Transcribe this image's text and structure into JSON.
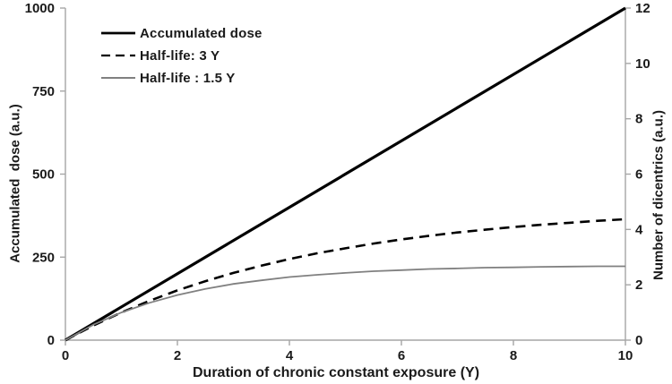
{
  "chart_data": {
    "type": "line",
    "title": "",
    "xlabel": "Duration of chronic constant exposure (Y)",
    "ylabel_left": "Accumulated  dose (a.u.)",
    "ylabel_right": "Number of dicentrics (a.u.)",
    "xlim": [
      0,
      10
    ],
    "ylim_left": [
      0,
      1000
    ],
    "ylim_right": [
      0,
      12
    ],
    "x_ticks": [
      0,
      2,
      4,
      6,
      8,
      10
    ],
    "y_ticks_left": [
      0,
      250,
      500,
      750,
      1000
    ],
    "y_ticks_right": [
      0,
      2,
      4,
      6,
      8,
      10,
      12
    ],
    "grid": false,
    "legend_position": "top-left-inside",
    "colors": {
      "black_series": "#000000",
      "gray_series": "#808080",
      "axis": "#a6a6a6",
      "text": "#1a1a1a",
      "background": "#ffffff"
    },
    "series": [
      {
        "name": "Accumulated dose",
        "axis": "left",
        "style": "solid",
        "color": "#000000",
        "width": 3.2,
        "x": [
          0,
          10
        ],
        "y": [
          0,
          1000
        ]
      },
      {
        "name": "Half-life: 3 Y",
        "axis": "right",
        "style": "dashed",
        "color": "#000000",
        "width": 2.6,
        "x": [
          0,
          0.5,
          1,
          1.5,
          2,
          2.5,
          3,
          3.5,
          4,
          4.5,
          5,
          5.5,
          6,
          6.5,
          7,
          7.5,
          8,
          8.5,
          9,
          9.5,
          10
        ],
        "y": [
          0,
          0.53,
          1.0,
          1.42,
          1.8,
          2.13,
          2.43,
          2.69,
          2.93,
          3.14,
          3.32,
          3.49,
          3.64,
          3.77,
          3.89,
          3.99,
          4.09,
          4.17,
          4.24,
          4.31,
          4.37
        ]
      },
      {
        "name": "Half-life : 1.5 Y",
        "axis": "right",
        "style": "solid",
        "color": "#808080",
        "width": 1.8,
        "x": [
          0,
          0.5,
          1,
          1.5,
          2,
          2.5,
          3,
          3.5,
          4,
          4.5,
          5,
          5.5,
          6,
          6.5,
          7,
          7.5,
          8,
          8.5,
          9,
          9.5,
          10
        ],
        "y": [
          0,
          0.56,
          1.0,
          1.35,
          1.63,
          1.85,
          2.03,
          2.16,
          2.28,
          2.36,
          2.43,
          2.49,
          2.53,
          2.57,
          2.59,
          2.62,
          2.63,
          2.65,
          2.66,
          2.67,
          2.67
        ]
      }
    ]
  }
}
